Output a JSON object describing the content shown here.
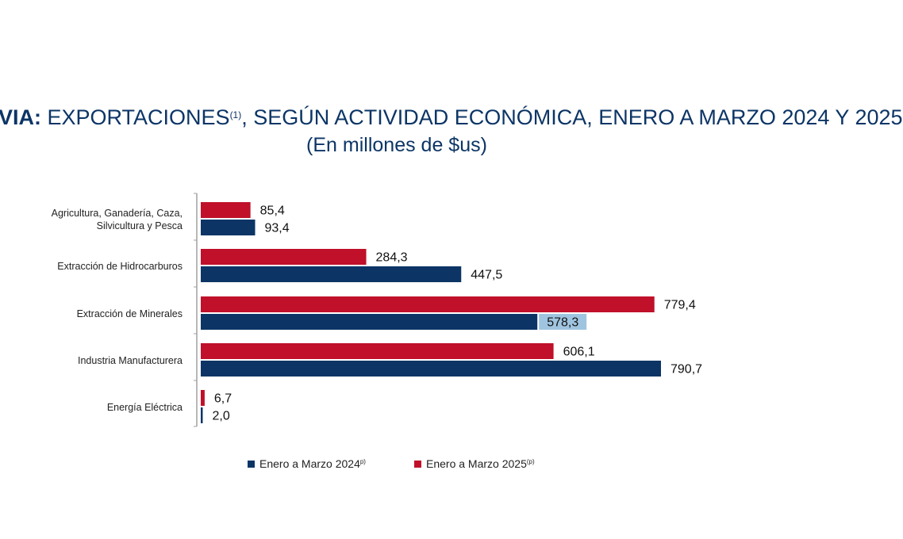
{
  "header": {
    "title_bold": "VIA:",
    "title_main": " EXPORTACIONES",
    "title_sup": "(1)",
    "title_rest": ", SEGÚN ACTIVIDAD ECONÓMICA, ENERO A MARZO 2024 Y 2025",
    "subtitle": "(En millones de $us)"
  },
  "colors": {
    "series_2024": "#0c3566",
    "series_2025": "#c0102a",
    "axis": "#a0a0a0",
    "highlight": "#9fc4e0"
  },
  "legend": [
    {
      "label": "Enero a Marzo 2024",
      "sup": "p)",
      "color": "#0c3566"
    },
    {
      "label": "Enero a Marzo  2025",
      "sup": "(p)",
      "color": "#c0102a"
    }
  ],
  "chart_data": {
    "type": "bar",
    "orientation": "horizontal",
    "categories": [
      [
        "Agricultura, Ganadería, Caza,",
        "Silvicultura y Pesca"
      ],
      [
        "Extracción de Hidrocarburos"
      ],
      [
        "Extracción de Minerales"
      ],
      [
        "Industria Manufacturera"
      ],
      [
        "Energía Eléctrica"
      ]
    ],
    "series": [
      {
        "name": "Enero a Marzo 2025(p)",
        "values": [
          85.4,
          284.3,
          779.4,
          606.1,
          6.7
        ],
        "labels": [
          "85,4",
          "284,3",
          "779,4",
          "606,1",
          "6,7"
        ]
      },
      {
        "name": "Enero a Marzo 2024p)",
        "values": [
          93.4,
          447.5,
          578.3,
          790.7,
          2.0
        ],
        "labels": [
          "93,4",
          "447,5",
          "578,3",
          "790,7",
          "2,0"
        ]
      }
    ],
    "highlighted_label": "578,3",
    "xlim": [
      0,
      790.7
    ],
    "grid": false,
    "legend_position": "bottom"
  }
}
